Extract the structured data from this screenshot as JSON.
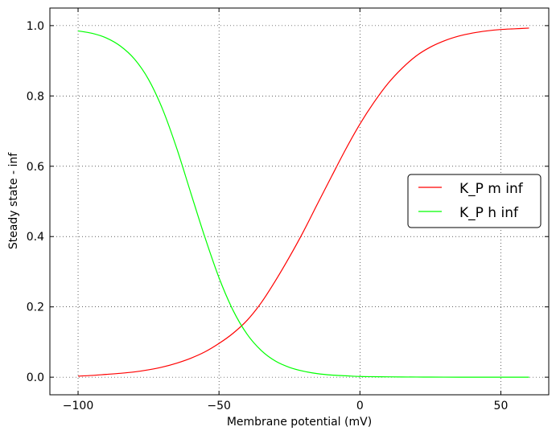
{
  "chart_data": {
    "type": "line",
    "title": "",
    "xlabel": "Membrane potential (mV)",
    "ylabel": "Steady state - inf",
    "xlim": [
      -110,
      67
    ],
    "ylim": [
      -0.05,
      1.05
    ],
    "xticks": [
      -100,
      -50,
      0,
      50
    ],
    "xtick_labels": [
      "−100",
      "−50",
      "0",
      "50"
    ],
    "yticks": [
      0.0,
      0.2,
      0.4,
      0.6,
      0.8,
      1.0
    ],
    "ytick_labels": [
      "0.0",
      "0.2",
      "0.4",
      "0.6",
      "0.8",
      "1.0"
    ],
    "grid": true,
    "legend_position": "center-right",
    "x": [
      -100,
      -95,
      -90,
      -85,
      -80,
      -75,
      -70,
      -65,
      -60,
      -55,
      -50,
      -45,
      -40,
      -35,
      -30,
      -25,
      -20,
      -15,
      -10,
      -5,
      0,
      5,
      10,
      15,
      20,
      25,
      30,
      35,
      40,
      45,
      50,
      55,
      60
    ],
    "series": [
      {
        "name": "K_P m inf",
        "color": "#ff0000",
        "values": [
          0.003,
          0.005,
          0.008,
          0.011,
          0.015,
          0.021,
          0.029,
          0.04,
          0.054,
          0.072,
          0.096,
          0.125,
          0.162,
          0.212,
          0.274,
          0.342,
          0.415,
          0.494,
          0.572,
          0.649,
          0.72,
          0.782,
          0.836,
          0.879,
          0.914,
          0.939,
          0.957,
          0.97,
          0.979,
          0.985,
          0.989,
          0.991,
          0.993
        ]
      },
      {
        "name": "K_P h inf",
        "color": "#00ff00",
        "values": [
          0.985,
          0.978,
          0.965,
          0.942,
          0.905,
          0.847,
          0.762,
          0.651,
          0.524,
          0.398,
          0.283,
          0.19,
          0.122,
          0.076,
          0.046,
          0.028,
          0.017,
          0.01,
          0.006,
          0.004,
          0.002,
          0.0015,
          0.001,
          0.0006,
          0.0004,
          0.0003,
          0.0002,
          0.0001,
          0.0001,
          0.0,
          0.0,
          0.0,
          0.0
        ]
      }
    ]
  }
}
